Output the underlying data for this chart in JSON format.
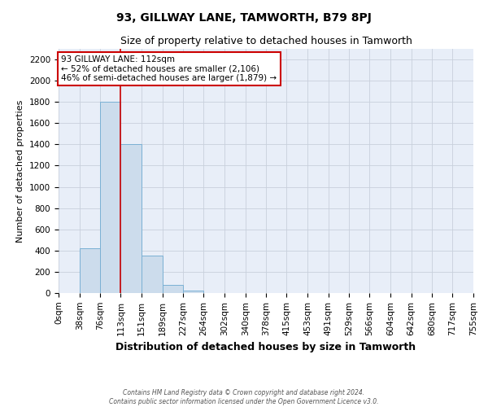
{
  "title": "93, GILLWAY LANE, TAMWORTH, B79 8PJ",
  "subtitle": "Size of property relative to detached houses in Tamworth",
  "xlabel": "Distribution of detached houses by size in Tamworth",
  "ylabel": "Number of detached properties",
  "bins": [
    0,
    38,
    76,
    113,
    151,
    189,
    227,
    264,
    302,
    340,
    378,
    415,
    453,
    491,
    529,
    566,
    604,
    642,
    680,
    717,
    755
  ],
  "bar_heights": [
    0,
    420,
    1800,
    1400,
    350,
    75,
    25,
    0,
    0,
    0,
    0,
    0,
    0,
    0,
    0,
    0,
    0,
    0,
    0,
    0
  ],
  "bar_color": "#ccdcec",
  "bar_edge_color": "#7ab0d4",
  "ylim": [
    0,
    2300
  ],
  "yticks": [
    0,
    200,
    400,
    600,
    800,
    1000,
    1200,
    1400,
    1600,
    1800,
    2000,
    2200
  ],
  "property_size": 112,
  "marker_line_color": "#cc0000",
  "annotation_line1": "93 GILLWAY LANE: 112sqm",
  "annotation_line2": "← 52% of detached houses are smaller (2,106)",
  "annotation_line3": "46% of semi-detached houses are larger (1,879) →",
  "annotation_box_facecolor": "#ffffff",
  "annotation_box_edgecolor": "#cc0000",
  "grid_color": "#c8d0dc",
  "ax_facecolor": "#e8eef8",
  "fig_facecolor": "#ffffff",
  "title_fontsize": 10,
  "subtitle_fontsize": 9,
  "xlabel_fontsize": 9,
  "ylabel_fontsize": 8,
  "tick_fontsize": 7.5,
  "annotation_fontsize": 7.5,
  "footer_line1": "Contains HM Land Registry data © Crown copyright and database right 2024.",
  "footer_line2": "Contains public sector information licensed under the Open Government Licence v3.0."
}
